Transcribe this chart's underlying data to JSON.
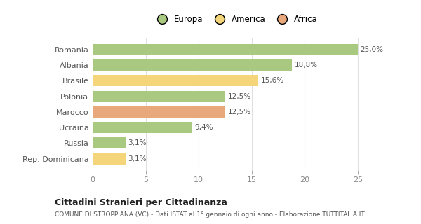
{
  "categories": [
    "Romania",
    "Albania",
    "Brasile",
    "Polonia",
    "Marocco",
    "Ucraina",
    "Russia",
    "Rep. Dominicana"
  ],
  "values": [
    25.0,
    18.8,
    15.6,
    12.5,
    12.5,
    9.4,
    3.1,
    3.1
  ],
  "colors": [
    "#a8c97f",
    "#a8c97f",
    "#f5d57a",
    "#a8c97f",
    "#e8a87c",
    "#a8c97f",
    "#a8c97f",
    "#f5d57a"
  ],
  "labels": [
    "25,0%",
    "18,8%",
    "15,6%",
    "12,5%",
    "12,5%",
    "9,4%",
    "3,1%",
    "3,1%"
  ],
  "legend": [
    {
      "label": "Europa",
      "color": "#a8c97f"
    },
    {
      "label": "America",
      "color": "#f5d57a"
    },
    {
      "label": "Africa",
      "color": "#e8a87c"
    }
  ],
  "xlim": [
    0,
    27
  ],
  "xticks": [
    0,
    5,
    10,
    15,
    20,
    25
  ],
  "title": "Cittadini Stranieri per Cittadinanza",
  "subtitle": "COMUNE DI STROPPIANA (VC) - Dati ISTAT al 1° gennaio di ogni anno - Elaborazione TUTTITALIA.IT",
  "background_color": "#ffffff",
  "grid_color": "#e0e0e0",
  "bar_height": 0.72
}
